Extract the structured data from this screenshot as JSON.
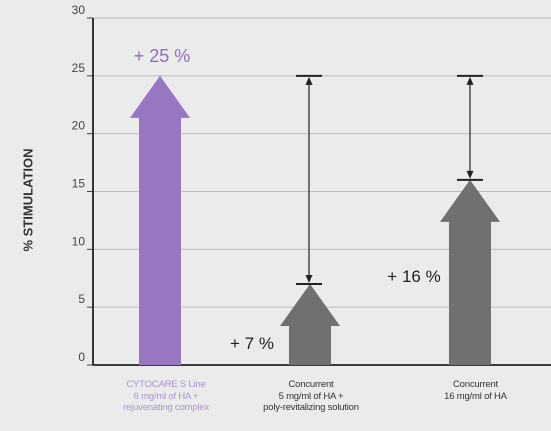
{
  "chart_data": {
    "type": "bar",
    "title": "",
    "ylabel": "% STIMULATION",
    "ylim": [
      0,
      30
    ],
    "yticks": [
      0,
      5,
      10,
      15,
      20,
      25,
      30
    ],
    "grid": true,
    "categories": [
      {
        "lines": [
          "CYTOCARE S Line",
          "6 mg/ml of HA +",
          "rejuvenating complex"
        ],
        "value": 25,
        "label": "+ 25 %",
        "color": "#9777c2"
      },
      {
        "lines": [
          "Concurrent",
          "5 mg/ml of HA +",
          "poly-revitalizing solution"
        ],
        "value": 7,
        "label": "+ 7 %",
        "color": "#707070"
      },
      {
        "lines": [
          "Concurrent",
          "16 mg/ml of HA"
        ],
        "value": 16,
        "label": "+ 16 %",
        "color": "#707070"
      }
    ],
    "difference_markers": [
      {
        "from": 7,
        "to": 25
      },
      {
        "from": 16,
        "to": 25
      }
    ]
  }
}
